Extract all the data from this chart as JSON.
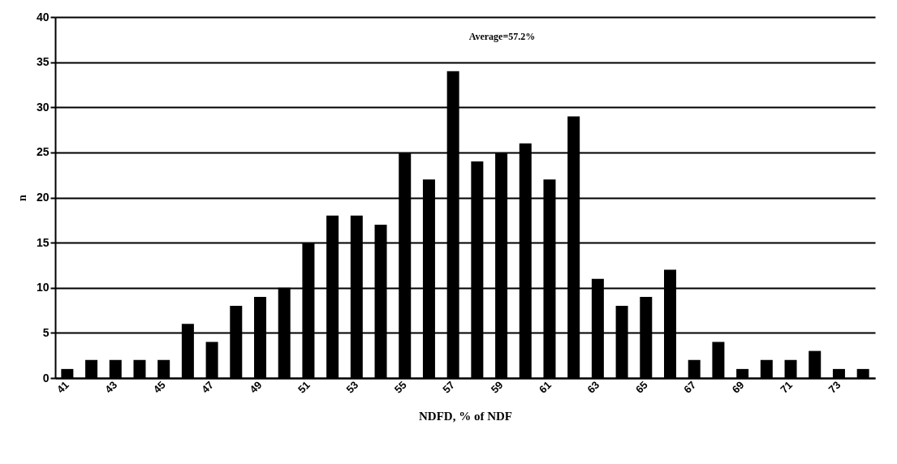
{
  "chart_data": {
    "type": "bar",
    "xlabel": "NDFD, % of NDF",
    "ylabel": "n",
    "categories": [
      "41",
      null,
      "43",
      null,
      "45",
      null,
      "47",
      null,
      "49",
      null,
      "51",
      null,
      "53",
      null,
      "55",
      null,
      "57",
      null,
      "59",
      null,
      "61",
      null,
      "63",
      null,
      "65",
      null,
      "67",
      null,
      "69",
      null,
      "71",
      null,
      "73",
      null
    ],
    "values": [
      1,
      2,
      2,
      2,
      2,
      6,
      4,
      8,
      9,
      10,
      15,
      18,
      18,
      17,
      25,
      22,
      34,
      24,
      25,
      26,
      22,
      29,
      11,
      8,
      9,
      12,
      2,
      4,
      1,
      2,
      2,
      3,
      1,
      1
    ],
    "color": "#000000",
    "ylim": [
      0,
      40
    ],
    "yticks": [
      0,
      5,
      10,
      15,
      20,
      25,
      30,
      35,
      40
    ],
    "grid": "y",
    "annotations": [
      "Average=57.2%"
    ]
  }
}
